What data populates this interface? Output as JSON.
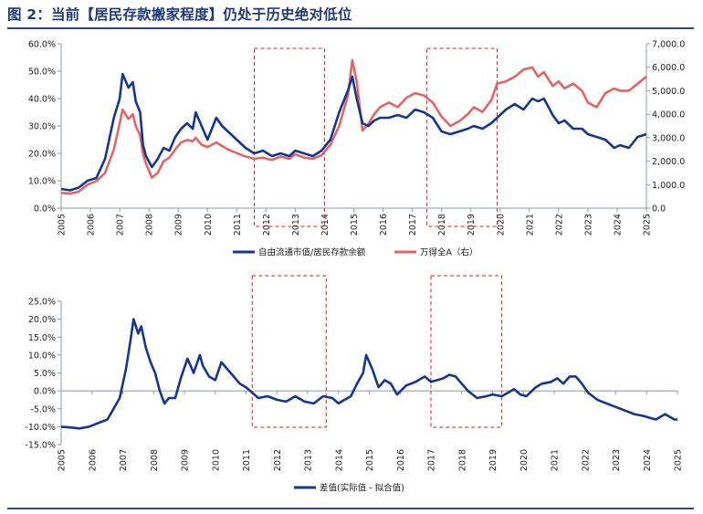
{
  "title": "图 2：当前【居民存款搬家程度】仍处于历史绝对低位",
  "colors": {
    "navy": "#16368c",
    "red": "#e06666",
    "axis": "#8c9aa8",
    "box": "#d62020",
    "title": "#1f3a7a"
  },
  "chart_data": [
    {
      "type": "line",
      "name": "top",
      "left_axis": {
        "ticks": [
          "0.0%",
          "10.0%",
          "20.0%",
          "30.0%",
          "40.0%",
          "50.0%",
          "60.0%"
        ],
        "ylim": [
          0,
          60
        ]
      },
      "right_axis": {
        "ticks": [
          "0.0",
          "1,000.0",
          "2,000.0",
          "3,000.0",
          "4,000.0",
          "5,000.0",
          "6,000.0",
          "7,000.0"
        ],
        "ylim": [
          0,
          7000
        ]
      },
      "xlim": [
        2005,
        2025
      ],
      "x_ticks": [
        "2005",
        "2006",
        "2007",
        "2008",
        "2009",
        "2010",
        "2011",
        "2012",
        "2013",
        "2014",
        "2015",
        "2016",
        "2017",
        "2018",
        "2019",
        "2020",
        "2021",
        "2022",
        "2023",
        "2024",
        "2025"
      ],
      "highlight_x": [
        [
          2011.6,
          2014.0
        ],
        [
          2017.5,
          2019.9
        ]
      ],
      "legend": [
        "自由流通市值/居民存款余额",
        "万得全A（右）"
      ],
      "series": [
        {
          "name": "自由流通市值/居民存款余额",
          "axis": "left",
          "x": [
            2005,
            2005.3,
            2005.6,
            2005.9,
            2006.2,
            2006.5,
            2006.8,
            2007.0,
            2007.1,
            2007.3,
            2007.45,
            2007.55,
            2007.7,
            2007.8,
            2007.9,
            2008.1,
            2008.3,
            2008.5,
            2008.7,
            2008.9,
            2009.1,
            2009.3,
            2009.5,
            2009.6,
            2009.8,
            2010.0,
            2010.3,
            2010.5,
            2010.7,
            2010.9,
            2011.1,
            2011.3,
            2011.6,
            2011.9,
            2012.2,
            2012.5,
            2012.8,
            2013.0,
            2013.3,
            2013.6,
            2013.9,
            2014.2,
            2014.5,
            2014.8,
            2014.95,
            2015.1,
            2015.3,
            2015.5,
            2015.7,
            2015.9,
            2016.2,
            2016.5,
            2016.8,
            2017.1,
            2017.4,
            2017.7,
            2018.0,
            2018.3,
            2018.6,
            2018.9,
            2019.1,
            2019.4,
            2019.7,
            2019.9,
            2020.2,
            2020.5,
            2020.8,
            2021.1,
            2021.3,
            2021.5,
            2021.8,
            2022.0,
            2022.2,
            2022.5,
            2022.8,
            2023.0,
            2023.3,
            2023.6,
            2023.9,
            2024.1,
            2024.4,
            2024.7,
            2025.0
          ],
          "values": [
            7,
            6.5,
            7.5,
            10,
            11,
            18,
            33,
            40,
            49,
            44,
            46,
            39,
            35,
            23,
            19,
            15,
            18,
            22,
            21,
            26,
            29,
            31,
            29,
            35,
            30,
            25,
            33,
            30,
            28,
            26,
            24,
            22,
            20,
            21,
            19,
            20,
            19,
            21,
            20,
            19,
            21,
            25,
            35,
            43,
            48,
            40,
            31,
            30,
            32,
            33,
            33,
            34,
            33,
            36,
            35,
            33,
            28,
            27,
            28,
            29,
            30,
            29,
            31,
            33,
            36,
            38,
            36,
            40,
            39,
            40,
            34,
            31,
            32,
            29,
            29,
            27,
            26,
            25,
            22,
            23,
            22,
            26,
            27
          ]
        },
        {
          "name": "万得全A（右）",
          "axis": "right",
          "x": [
            2005,
            2005.3,
            2005.6,
            2005.9,
            2006.2,
            2006.5,
            2006.8,
            2007.0,
            2007.1,
            2007.3,
            2007.45,
            2007.55,
            2007.7,
            2007.8,
            2007.9,
            2008.1,
            2008.3,
            2008.5,
            2008.7,
            2008.9,
            2009.1,
            2009.3,
            2009.5,
            2009.6,
            2009.8,
            2010.0,
            2010.3,
            2010.5,
            2010.7,
            2010.9,
            2011.1,
            2011.3,
            2011.6,
            2011.9,
            2012.2,
            2012.5,
            2012.8,
            2013.0,
            2013.3,
            2013.6,
            2013.9,
            2014.2,
            2014.5,
            2014.8,
            2014.95,
            2015.1,
            2015.3,
            2015.5,
            2015.7,
            2015.9,
            2016.2,
            2016.5,
            2016.8,
            2017.1,
            2017.4,
            2017.7,
            2018.0,
            2018.3,
            2018.6,
            2018.9,
            2019.1,
            2019.4,
            2019.7,
            2019.9,
            2020.2,
            2020.5,
            2020.8,
            2021.1,
            2021.3,
            2021.5,
            2021.8,
            2022.0,
            2022.2,
            2022.5,
            2022.8,
            2023.0,
            2023.3,
            2023.6,
            2023.9,
            2024.1,
            2024.4,
            2024.7,
            2025.0
          ],
          "values": [
            650,
            620,
            700,
            1000,
            1150,
            1500,
            2500,
            3600,
            4200,
            3800,
            4000,
            3500,
            3100,
            2300,
            1900,
            1300,
            1500,
            2000,
            2150,
            2500,
            2800,
            2900,
            2850,
            3000,
            2700,
            2600,
            2800,
            2650,
            2500,
            2400,
            2300,
            2200,
            2100,
            2150,
            2050,
            2200,
            2100,
            2300,
            2150,
            2100,
            2250,
            2700,
            3500,
            4800,
            6300,
            5400,
            3300,
            3600,
            4000,
            4300,
            4500,
            4300,
            4700,
            4900,
            4800,
            4500,
            3900,
            3500,
            3700,
            4000,
            4300,
            4100,
            4600,
            5300,
            5400,
            5600,
            5900,
            6000,
            5600,
            5800,
            5200,
            5400,
            5100,
            5300,
            5000,
            4500,
            4300,
            4900,
            5100,
            5000,
            5000,
            5300,
            5600
          ]
        }
      ]
    },
    {
      "type": "line",
      "name": "bottom",
      "axis": {
        "ticks": [
          "-15.0%",
          "-10.0%",
          "-5.0%",
          "0.0%",
          "5.0%",
          "10.0%",
          "15.0%",
          "20.0%",
          "25.0%"
        ],
        "ylim": [
          -15,
          25
        ]
      },
      "xlim": [
        2005,
        2025
      ],
      "x_ticks": [
        "2005",
        "2006",
        "2007",
        "2008",
        "2009",
        "2010",
        "2011",
        "2012",
        "2013",
        "2014",
        "2015",
        "2016",
        "2017",
        "2018",
        "2019",
        "2020",
        "2021",
        "2022",
        "2023",
        "2024",
        "2025"
      ],
      "highlight_x": [
        [
          2011.2,
          2013.6
        ],
        [
          2017.0,
          2019.3
        ]
      ],
      "legend": [
        "差值(实际值 - 拟合值)"
      ],
      "series": [
        {
          "name": "差值(实际值 - 拟合值)",
          "x": [
            2005,
            2005.3,
            2005.6,
            2005.9,
            2006.2,
            2006.5,
            2006.7,
            2006.9,
            2007.1,
            2007.25,
            2007.35,
            2007.5,
            2007.6,
            2007.75,
            2007.9,
            2008.05,
            2008.2,
            2008.35,
            2008.5,
            2008.7,
            2008.9,
            2009.1,
            2009.3,
            2009.5,
            2009.6,
            2009.8,
            2010.0,
            2010.2,
            2010.4,
            2010.6,
            2010.8,
            2011.0,
            2011.2,
            2011.4,
            2011.7,
            2012.0,
            2012.3,
            2012.6,
            2012.9,
            2013.2,
            2013.5,
            2013.8,
            2014.0,
            2014.2,
            2014.4,
            2014.6,
            2014.8,
            2014.9,
            2015.1,
            2015.3,
            2015.5,
            2015.7,
            2015.9,
            2016.2,
            2016.5,
            2016.8,
            2017.0,
            2017.2,
            2017.4,
            2017.6,
            2017.8,
            2018.0,
            2018.2,
            2018.5,
            2018.8,
            2019.0,
            2019.3,
            2019.5,
            2019.7,
            2019.9,
            2020.1,
            2020.4,
            2020.6,
            2020.9,
            2021.1,
            2021.3,
            2021.5,
            2021.7,
            2021.9,
            2022.1,
            2022.4,
            2022.7,
            2023.0,
            2023.3,
            2023.6,
            2023.9,
            2024.1,
            2024.3,
            2024.6,
            2024.9,
            2025.0
          ],
          "values": [
            -10,
            -10.2,
            -10.5,
            -10,
            -9,
            -8,
            -5,
            -2,
            6,
            14,
            20,
            16,
            18,
            12,
            8,
            5,
            0,
            -3.5,
            -2,
            -2,
            4,
            9,
            5,
            10,
            7,
            4,
            3,
            8,
            6,
            4,
            2,
            1,
            -0.5,
            -2,
            -1.5,
            -2.5,
            -3,
            -1.5,
            -3,
            -3.5,
            -1.5,
            -2,
            -3.5,
            -2.5,
            -1.5,
            2,
            5,
            10,
            6,
            1,
            3,
            2,
            -1,
            1.5,
            2.5,
            4,
            2.5,
            3,
            3.5,
            4.5,
            4,
            2,
            0,
            -2,
            -1.5,
            -1,
            -1.5,
            -0.5,
            0.5,
            -1,
            -1.5,
            1,
            2,
            2.5,
            3.5,
            2,
            4,
            4,
            2,
            -0.5,
            -2.5,
            -3.5,
            -4.5,
            -5.5,
            -6.5,
            -7,
            -7.5,
            -8,
            -6.5,
            -8,
            -8
          ]
        }
      ]
    }
  ]
}
